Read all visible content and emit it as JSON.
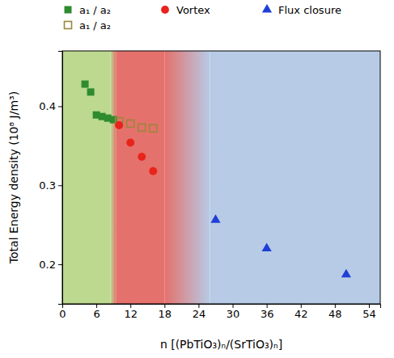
{
  "chart_data": {
    "type": "scatter",
    "x_label": "n [(PbTiO₃)ₙ/(SrTiO₃)ₙ]",
    "y_label": "Total Energy density (10⁸ J/m³)",
    "xlim": [
      0,
      56
    ],
    "ylim": [
      0.15,
      0.47
    ],
    "xticks": [
      0,
      6,
      12,
      18,
      24,
      30,
      36,
      42,
      48,
      54
    ],
    "yticks": [
      0.2,
      0.3,
      0.4
    ],
    "legend": "top",
    "series": [
      {
        "name": "a₁ / a₂",
        "color": "#2e8b2e",
        "marker": "square",
        "x": [
          4,
          5,
          6,
          7,
          8,
          9
        ],
        "values": [
          0.428,
          0.418,
          0.389,
          0.387,
          0.385,
          0.383
        ]
      },
      {
        "name": "a₁ / a₂",
        "color": "#9a873a",
        "marker": "square-open",
        "x": [
          10,
          12,
          14,
          16
        ],
        "values": [
          0.381,
          0.378,
          0.373,
          0.372
        ]
      },
      {
        "name": "Vortex",
        "color": "#e8231b",
        "marker": "circle",
        "x": [
          10,
          12,
          14,
          16
        ],
        "values": [
          0.376,
          0.354,
          0.336,
          0.318
        ]
      },
      {
        "name": "Flux closure",
        "color": "#1f3fd6",
        "marker": "triangle",
        "x": [
          27,
          36,
          50
        ],
        "values": [
          0.256,
          0.22,
          0.187
        ]
      }
    ],
    "regions": [
      {
        "x": [
          0,
          8.5
        ],
        "color": "#bcd98f"
      },
      {
        "x": [
          9.5,
          18
        ],
        "color": "#e4716c"
      },
      {
        "x": [
          26,
          56
        ],
        "color": "#b7cbe6"
      }
    ]
  }
}
